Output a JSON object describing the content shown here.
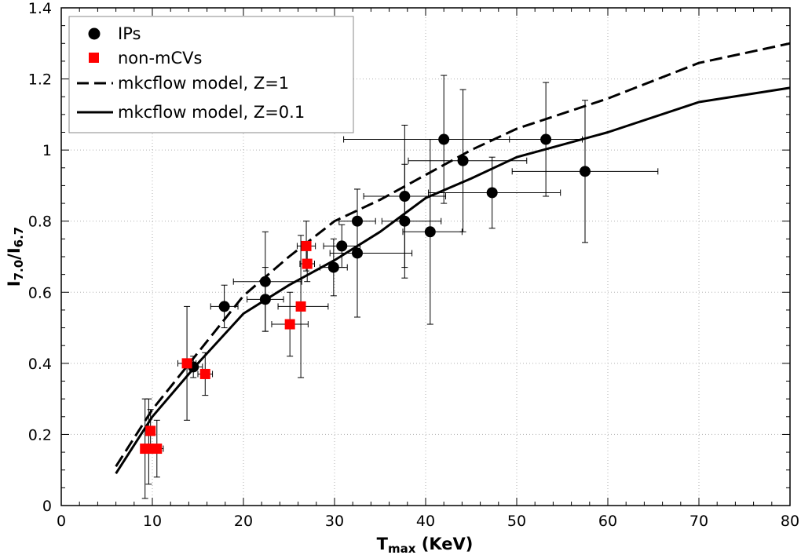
{
  "chart_data": {
    "type": "scatter",
    "title": "",
    "xlabel": {
      "base": "T",
      "sub": "max",
      "rest": " (KeV)"
    },
    "ylabel": {
      "p1": "I",
      "sub1": "7.0",
      "mid": "/I",
      "sub2": "6.7"
    },
    "xlim": [
      0,
      80
    ],
    "ylim": [
      0,
      1.4
    ],
    "x_ticks": [
      0,
      10,
      20,
      30,
      40,
      50,
      60,
      70,
      80
    ],
    "y_ticks": [
      0,
      0.2,
      0.4,
      0.6,
      0.8,
      1.0,
      1.2,
      1.4
    ],
    "x_tick_labels": [
      "0",
      "10",
      "20",
      "30",
      "40",
      "50",
      "60",
      "70",
      "80"
    ],
    "y_tick_labels": [
      "0",
      "0.2",
      "0.4",
      "0.6",
      "0.8",
      "1",
      "1.2",
      "1.4"
    ],
    "grid": true,
    "legend_position": "top-left",
    "legend": [
      {
        "label": "IPs",
        "marker": "circle"
      },
      {
        "label": "non-mCVs",
        "marker": "square"
      },
      {
        "label": "mkcflow model,  Z=1",
        "marker": "dashed-line"
      },
      {
        "label": "mkcflow model,  Z=0.1",
        "marker": "solid-line"
      }
    ],
    "colors": {
      "ips": "#000000",
      "non_mcvs": "#ff0000",
      "lines": "#000000",
      "grid": "#b0b0b0"
    },
    "series": [
      {
        "name": "IPs",
        "kind": "points",
        "marker": "circle",
        "points": [
          {
            "x": 14.5,
            "y": 0.39,
            "xerr": [
              1.0,
              1.0
            ],
            "yerr": [
              0.03,
              0.03
            ]
          },
          {
            "x": 17.9,
            "y": 0.56,
            "xerr": [
              1.5,
              1.5
            ],
            "yerr": [
              0.06,
              0.06
            ]
          },
          {
            "x": 22.4,
            "y": 0.63,
            "xerr": [
              3.5,
              4.0
            ],
            "yerr": [
              0.14,
              0.14
            ]
          },
          {
            "x": 22.4,
            "y": 0.58,
            "xerr": [
              2.0,
              2.0
            ],
            "yerr": [
              0.09,
              0.09
            ]
          },
          {
            "x": 29.9,
            "y": 0.67,
            "xerr": [
              1.5,
              1.5
            ],
            "yerr": [
              0.08,
              0.08
            ]
          },
          {
            "x": 30.8,
            "y": 0.73,
            "xerr": [
              2.0,
              2.0
            ],
            "yerr": [
              0.06,
              0.06
            ]
          },
          {
            "x": 32.5,
            "y": 0.8,
            "xerr": [
              2.0,
              2.0
            ],
            "yerr": [
              0.09,
              0.09
            ]
          },
          {
            "x": 32.5,
            "y": 0.71,
            "xerr": [
              3.0,
              6.0
            ],
            "yerr": [
              0.18,
              0.18
            ]
          },
          {
            "x": 37.7,
            "y": 0.87,
            "xerr": [
              4.5,
              4.5
            ],
            "yerr": [
              0.2,
              0.2
            ]
          },
          {
            "x": 37.7,
            "y": 0.8,
            "xerr": [
              2.5,
              4.0
            ],
            "yerr": [
              0.16,
              0.16
            ]
          },
          {
            "x": 40.5,
            "y": 0.77,
            "xerr": [
              3.0,
              3.5
            ],
            "yerr": [
              0.26,
              0.26
            ]
          },
          {
            "x": 42.0,
            "y": 1.03,
            "xerr": [
              11.0,
              11.0
            ],
            "yerr": [
              0.18,
              0.18
            ]
          },
          {
            "x": 44.1,
            "y": 0.97,
            "xerr": [
              6.0,
              7.0
            ],
            "yerr": [
              0.2,
              0.2
            ]
          },
          {
            "x": 47.3,
            "y": 0.88,
            "xerr": [
              7.0,
              7.5
            ],
            "yerr": [
              0.1,
              0.1
            ]
          },
          {
            "x": 53.2,
            "y": 1.03,
            "xerr": [
              4.0,
              4.0
            ],
            "yerr": [
              0.16,
              0.16
            ]
          },
          {
            "x": 57.5,
            "y": 0.94,
            "xerr": [
              8.0,
              8.0
            ],
            "yerr": [
              0.2,
              0.2
            ]
          }
        ]
      },
      {
        "name": "non-mCVs",
        "kind": "points",
        "marker": "square",
        "points": [
          {
            "x": 9.2,
            "y": 0.16,
            "xerr": [
              0.3,
              0.3
            ],
            "yerr": [
              0.14,
              0.14
            ]
          },
          {
            "x": 9.8,
            "y": 0.21,
            "xerr": [
              0.5,
              0.5
            ],
            "yerr": [
              0.06,
              0.06
            ]
          },
          {
            "x": 9.6,
            "y": 0.16,
            "xerr": [
              0.4,
              0.4
            ],
            "yerr": [
              0.1,
              0.14
            ]
          },
          {
            "x": 10.5,
            "y": 0.16,
            "xerr": [
              0.7,
              0.7
            ],
            "yerr": [
              0.08,
              0.08
            ]
          },
          {
            "x": 13.8,
            "y": 0.4,
            "xerr": [
              1.0,
              1.0
            ],
            "yerr": [
              0.16,
              0.16
            ]
          },
          {
            "x": 15.8,
            "y": 0.37,
            "xerr": [
              0.8,
              0.8
            ],
            "yerr": [
              0.06,
              0.06
            ]
          },
          {
            "x": 25.1,
            "y": 0.51,
            "xerr": [
              2.0,
              2.0
            ],
            "yerr": [
              0.09,
              0.09
            ]
          },
          {
            "x": 26.3,
            "y": 0.56,
            "xerr": [
              2.5,
              3.0
            ],
            "yerr": [
              0.2,
              0.2
            ]
          },
          {
            "x": 26.9,
            "y": 0.73,
            "xerr": [
              1.0,
              1.0
            ],
            "yerr": [
              0.07,
              0.07
            ]
          },
          {
            "x": 27.0,
            "y": 0.68,
            "xerr": [
              0.8,
              0.8
            ],
            "yerr": [
              0.05,
              0.05
            ]
          }
        ]
      },
      {
        "name": "mkcflow model,  Z=1",
        "kind": "line",
        "style": "dashed",
        "x": [
          6,
          10,
          15,
          20,
          25,
          30,
          35,
          40,
          45,
          50,
          60,
          70,
          80
        ],
        "y": [
          0.11,
          0.27,
          0.43,
          0.59,
          0.7,
          0.8,
          0.86,
          0.93,
          1.0,
          1.06,
          1.145,
          1.245,
          1.3
        ]
      },
      {
        "name": "mkcflow model,  Z=0.1",
        "kind": "line",
        "style": "solid",
        "x": [
          6,
          10,
          15,
          20,
          25,
          30,
          35,
          40,
          45,
          50,
          60,
          70,
          80
        ],
        "y": [
          0.09,
          0.25,
          0.4,
          0.54,
          0.62,
          0.69,
          0.77,
          0.865,
          0.92,
          0.98,
          1.05,
          1.135,
          1.175
        ]
      }
    ]
  }
}
